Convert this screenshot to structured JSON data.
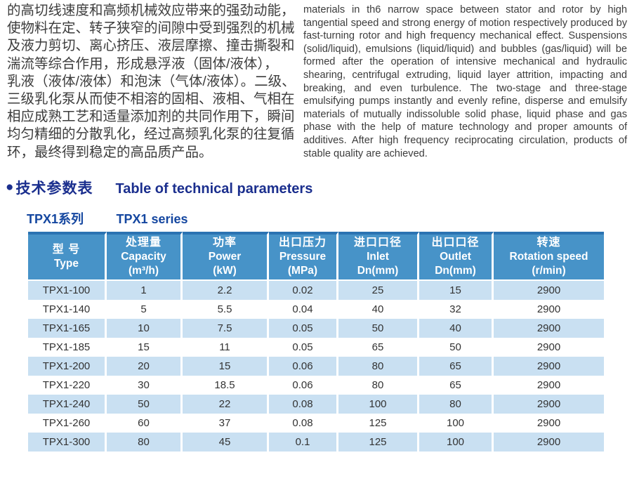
{
  "intro_zh_lines": [
    "的高切线速度和高频机械效应带来的强劲动能，",
    "使物料在定、转子狭窄的间隙中受到强烈的机械",
    "及液力剪切、离心挤压、液层摩擦、撞击撕裂和",
    "湍流等综合作用，形成悬浮液（固体/液体），",
    "乳液（液体/液体）和泡沫（气体/液体）。二级、",
    "三级乳化泵从而使不相溶的固相、液相、气相在",
    "相应成熟工艺和适量添加剂的共同作用下，瞬间",
    "均匀精细的分散乳化，经过高频乳化泵的往复循",
    "环，最终得到稳定的高品质产品。"
  ],
  "intro_en": "materials in th6 narrow space between stator and rotor by high tangential speed and strong energy of motion respectively produced by fast-turning rotor and high frequency mechanical effect. Suspensions (solid/liquid), emulsions (liquid/liquid) and bubbles (gas/liquid) will be formed after the operation of intensive mechanical and hydraulic shearing, centrifugal extruding, liquid layer attrition, impacting and breaking, and even turbulence. The two-stage and three-stage emulsifying pumps instantly and evenly refine, disperse and emulsify materials of mutually indissoluble solid phase, liquid phase and gas phase with the help of mature technology and proper amounts of additives. After high frequency reciprocating circulation, products of stable quality are achieved.",
  "section": {
    "bullet": "●",
    "title_zh": "技术参数表",
    "title_en": "Table of technical parameters",
    "series_zh": "TPX1系列",
    "series_en": "TPX1 series"
  },
  "table": {
    "columns": [
      {
        "lines": [
          "型 号",
          "Type"
        ]
      },
      {
        "lines": [
          "处理量",
          "Capacity",
          "(m³/h)"
        ]
      },
      {
        "lines": [
          "功率",
          "Power",
          "(kW)"
        ]
      },
      {
        "lines": [
          "出口压力",
          "Pressure",
          "(MPa)"
        ]
      },
      {
        "lines": [
          "进口口径",
          "Inlet",
          "Dn(mm)"
        ]
      },
      {
        "lines": [
          "出口口径",
          "Outlet",
          "Dn(mm)"
        ]
      },
      {
        "lines": [
          "转速",
          "Rotation speed",
          "(r/min)"
        ]
      }
    ],
    "rows": [
      [
        "TPX1-100",
        "1",
        "2.2",
        "0.02",
        "25",
        "15",
        "2900"
      ],
      [
        "TPX1-140",
        "5",
        "5.5",
        "0.04",
        "40",
        "32",
        "2900"
      ],
      [
        "TPX1-165",
        "10",
        "7.5",
        "0.05",
        "50",
        "40",
        "2900"
      ],
      [
        "TPX1-185",
        "15",
        "11",
        "0.05",
        "65",
        "50",
        "2900"
      ],
      [
        "TPX1-200",
        "20",
        "15",
        "0.06",
        "80",
        "65",
        "2900"
      ],
      [
        "TPX1-220",
        "30",
        "18.5",
        "0.06",
        "80",
        "65",
        "2900"
      ],
      [
        "TPX1-240",
        "50",
        "22",
        "0.08",
        "100",
        "80",
        "2900"
      ],
      [
        "TPX1-260",
        "60",
        "37",
        "0.08",
        "125",
        "100",
        "2900"
      ],
      [
        "TPX1-300",
        "80",
        "45",
        "0.1",
        "125",
        "100",
        "2900"
      ]
    ]
  },
  "colors": {
    "title_navy": "#1b2f8e",
    "series_blue": "#1547a0",
    "header_blue": "#4793c8",
    "header_top_border": "#2a73b2",
    "row_light_blue": "#c9e0f2",
    "body_text": "#333333"
  }
}
